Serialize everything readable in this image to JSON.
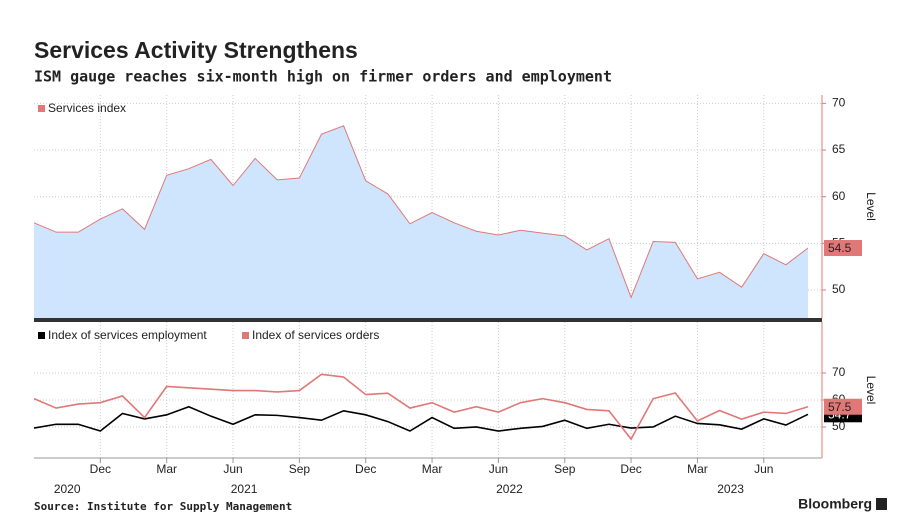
{
  "chart_data": [
    {
      "type": "area",
      "title": "Services Activity Strengthens",
      "subtitle": "ISM gauge reaches six-month high on firmer orders and employment",
      "ylabel": "Level",
      "x": [
        "2020-09",
        "2020-10",
        "2020-11",
        "2020-12",
        "2021-01",
        "2021-02",
        "2021-03",
        "2021-04",
        "2021-05",
        "2021-06",
        "2021-07",
        "2021-08",
        "2021-09",
        "2021-10",
        "2021-11",
        "2021-12",
        "2022-01",
        "2022-02",
        "2022-03",
        "2022-04",
        "2022-05",
        "2022-06",
        "2022-07",
        "2022-08",
        "2022-09",
        "2022-10",
        "2022-11",
        "2022-12",
        "2023-01",
        "2023-02",
        "2023-03",
        "2023-04",
        "2023-05",
        "2023-06",
        "2023-07",
        "2023-08"
      ],
      "series": [
        {
          "name": "Services index",
          "color": "#e07878",
          "fill": "#cfe5fd",
          "values": [
            57.2,
            56.2,
            56.2,
            57.6,
            58.7,
            56.5,
            62.3,
            63.0,
            64.0,
            61.2,
            64.1,
            61.8,
            62.0,
            66.7,
            67.6,
            61.7,
            60.3,
            57.1,
            58.3,
            57.2,
            56.3,
            55.9,
            56.4,
            56.1,
            55.8,
            54.3,
            55.5,
            49.2,
            55.2,
            55.1,
            51.2,
            51.9,
            50.3,
            53.9,
            52.7,
            54.5
          ]
        }
      ],
      "ylim": [
        47,
        70.9
      ],
      "yticks": [
        50,
        55,
        60,
        65,
        70
      ],
      "grid": true
    },
    {
      "type": "line",
      "ylabel": "Level",
      "source": "Source: Institute for Supply Management",
      "brand": "Bloomberg",
      "x": [
        "2020-09",
        "2020-10",
        "2020-11",
        "2020-12",
        "2021-01",
        "2021-02",
        "2021-03",
        "2021-04",
        "2021-05",
        "2021-06",
        "2021-07",
        "2021-08",
        "2021-09",
        "2021-10",
        "2021-11",
        "2021-12",
        "2022-01",
        "2022-02",
        "2022-03",
        "2022-04",
        "2022-05",
        "2022-06",
        "2022-07",
        "2022-08",
        "2022-09",
        "2022-10",
        "2022-11",
        "2022-12",
        "2023-01",
        "2023-02",
        "2023-03",
        "2023-04",
        "2023-05",
        "2023-06",
        "2023-07",
        "2023-08"
      ],
      "xticks": [
        {
          "value": "2020-12",
          "label": "Dec"
        },
        {
          "value": "2021-03",
          "label": "Mar"
        },
        {
          "value": "2021-06",
          "label": "Jun"
        },
        {
          "value": "2021-09",
          "label": "Sep"
        },
        {
          "value": "2021-12",
          "label": "Dec"
        },
        {
          "value": "2022-03",
          "label": "Mar"
        },
        {
          "value": "2022-06",
          "label": "Jun"
        },
        {
          "value": "2022-09",
          "label": "Sep"
        },
        {
          "value": "2022-12",
          "label": "Dec"
        },
        {
          "value": "2023-03",
          "label": "Mar"
        },
        {
          "value": "2023-06",
          "label": "Jun"
        }
      ],
      "year_labels": [
        "2020",
        "2021",
        "2022",
        "2023"
      ],
      "series": [
        {
          "name": "Index of services employment",
          "color": "#000000",
          "values": [
            49.6,
            51,
            51,
            48.5,
            55,
            53,
            54.5,
            57.5,
            54,
            51,
            54.5,
            54.3,
            53.5,
            52.5,
            56,
            54.5,
            52,
            48.5,
            53.5,
            49.5,
            50,
            48.5,
            49.5,
            50.2,
            52.5,
            49.5,
            51,
            49.6,
            50,
            54,
            51.3,
            50.8,
            49.2,
            53,
            50.7,
            54.7
          ]
        },
        {
          "name": "Index of services orders",
          "color": "#e07878",
          "values": [
            60.5,
            57,
            58.5,
            59,
            61.5,
            53.5,
            65,
            64.5,
            64,
            63.5,
            63.5,
            63,
            63.5,
            69.5,
            68.5,
            62,
            62.5,
            57,
            59,
            55.5,
            57.5,
            55.5,
            59,
            60.5,
            59,
            56.5,
            56,
            45.5,
            60.5,
            62.6,
            52.2,
            56.1,
            52.9,
            55.5,
            55,
            57.5
          ]
        }
      ],
      "ylim": [
        38.5,
        88.9
      ],
      "yticks": [
        50,
        60,
        70
      ],
      "grid": true
    }
  ]
}
